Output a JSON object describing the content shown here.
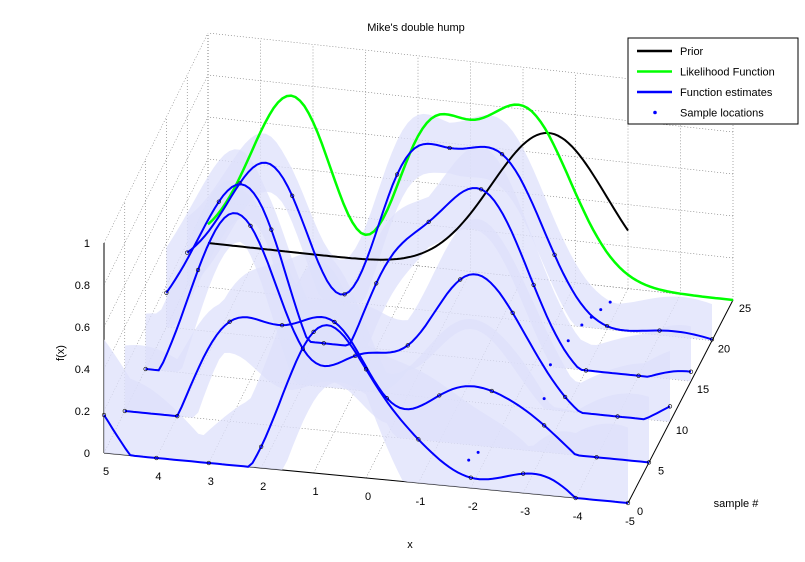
{
  "chart_data": {
    "type": "line",
    "projection": "3d",
    "title": "Mike's double hump",
    "xlabel": "x",
    "ylabel": "sample #",
    "zlabel": "f(x)",
    "xlim": [
      -5,
      5
    ],
    "ylim": [
      0,
      25
    ],
    "zlim": [
      0,
      1
    ],
    "x_ticks": [
      "-5",
      "-4",
      "-3",
      "-2",
      "-1",
      "0",
      "1",
      "2",
      "3",
      "4",
      "5"
    ],
    "y_ticks": [
      "0",
      "5",
      "10",
      "15",
      "20",
      "25"
    ],
    "z_ticks": [
      "0",
      "0.2",
      "0.4",
      "0.6",
      "0.8",
      "1"
    ],
    "grid": true,
    "legend": "top-right",
    "legend_entries": [
      {
        "label": "Prior",
        "color": "#000000",
        "style": "line"
      },
      {
        "label": "Likelihood Function",
        "color": "#00ff00",
        "style": "line"
      },
      {
        "label": "Function estimates",
        "color": "#0000ff",
        "style": "line"
      },
      {
        "label": "Sample locations",
        "color": "#0000ff",
        "style": "dots"
      }
    ],
    "series": [
      {
        "name": "Prior",
        "sample": 25,
        "curve": "gaussian",
        "amplitude": 0.7,
        "center": -1.5,
        "width": 1.1,
        "x": [
          -3,
          5
        ]
      },
      {
        "name": "Likelihood Function",
        "sample": 25,
        "curve": "double_hump",
        "x": [
          -5,
          5
        ]
      },
      {
        "name": "Function estimates",
        "sample": 20,
        "peak": 1.02
      },
      {
        "name": "Function estimates",
        "sample": 15,
        "peak": 0.95
      },
      {
        "name": "Function estimates",
        "sample": 10,
        "peak": 0.9
      },
      {
        "name": "Function estimates",
        "sample": 5,
        "peak": 0.88
      },
      {
        "name": "Function estimates",
        "sample": 0,
        "peak": 0.8
      }
    ],
    "colors": {
      "prior": "#000000",
      "likelihood": "#00ff00",
      "estimate": "#0000ff",
      "band": "#dde0fb"
    }
  }
}
